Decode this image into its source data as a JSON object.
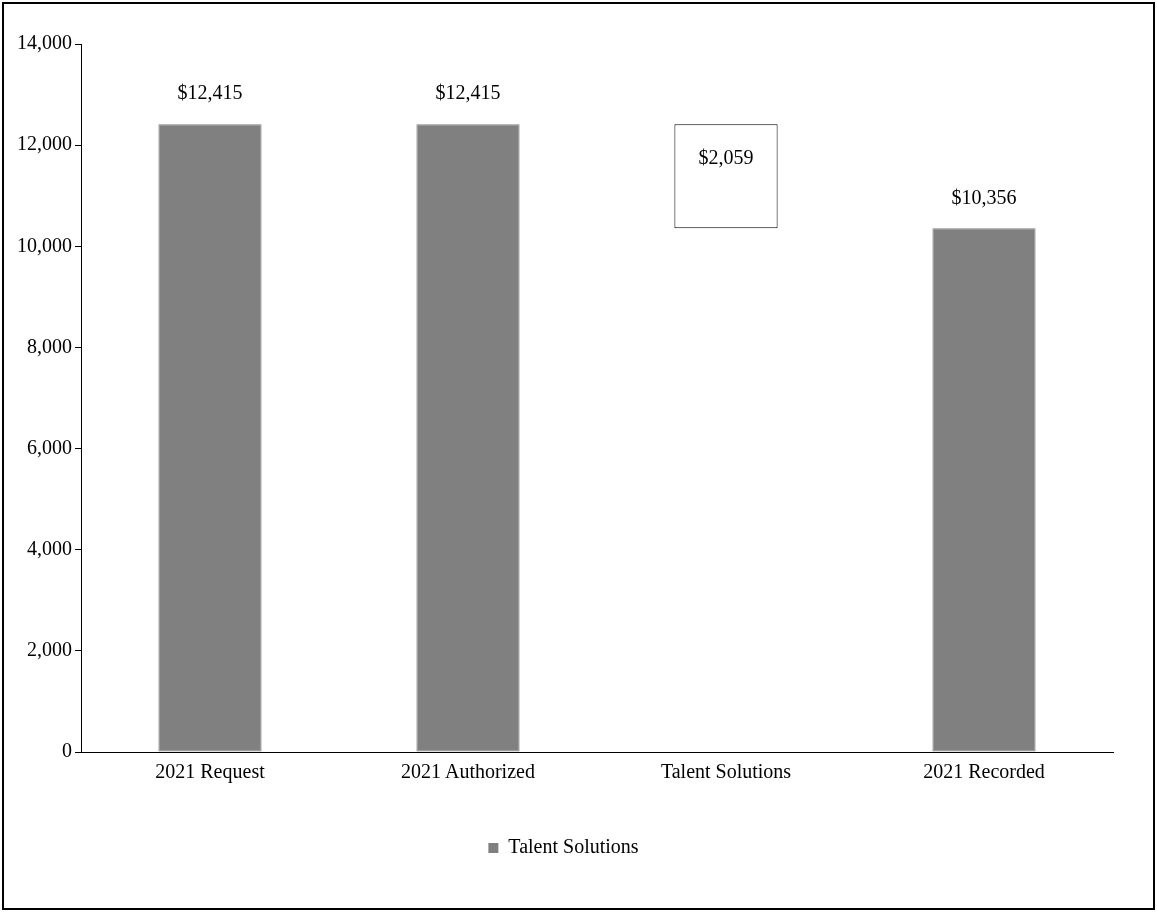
{
  "chart_data": {
    "type": "bar",
    "categories": [
      "2021 Request",
      "2021 Authorized",
      "Talent Solutions",
      "2021 Recorded"
    ],
    "series": [
      {
        "name": "Talent Solutions",
        "color": "#808080",
        "colors": [
          "#808080",
          "#808080",
          "#ffffff",
          "#808080"
        ],
        "values": [
          12415,
          12415,
          2059,
          10356
        ],
        "base": [
          0,
          0,
          10356,
          0
        ],
        "value_labels": [
          "$12,415",
          "$12,415",
          "$2,059",
          "$10,356"
        ]
      }
    ],
    "ylim": [
      0,
      14000
    ],
    "yticks": [
      {
        "value": 0,
        "label": "0"
      },
      {
        "value": 2000,
        "label": "2,000"
      },
      {
        "value": 4000,
        "label": "4,000"
      },
      {
        "value": 6000,
        "label": "6,000"
      },
      {
        "value": 8000,
        "label": "8,000"
      },
      {
        "value": 10000,
        "label": "10,000"
      },
      {
        "value": 12000,
        "label": "12,000"
      },
      {
        "value": 14000,
        "label": "14,000"
      }
    ],
    "grid": false,
    "legend": "bottom"
  }
}
